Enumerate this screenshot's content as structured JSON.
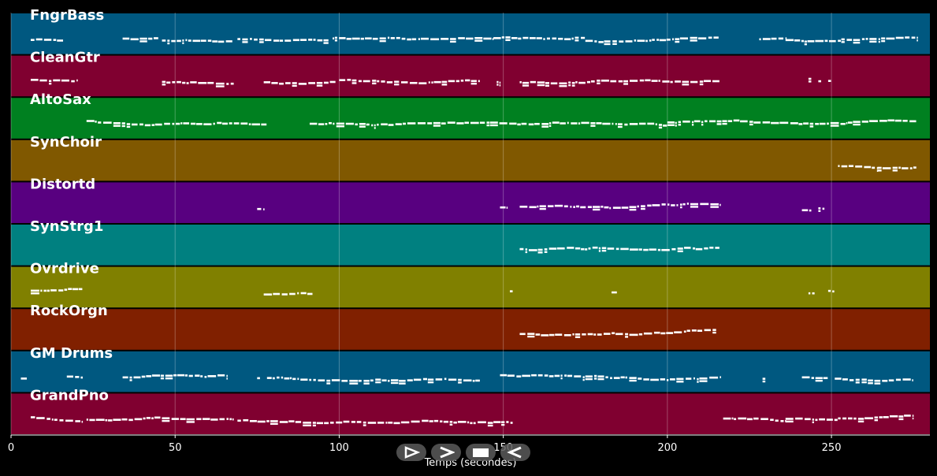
{
  "chart_data": {
    "type": "piano-roll",
    "xlabel": "Temps (secondes)",
    "xlim": [
      0,
      280
    ],
    "xticks": [
      0,
      50,
      100,
      150,
      200,
      250
    ],
    "grid": true,
    "tracks": [
      {
        "name": "FngrBass",
        "color": "#005880",
        "segments": [
          [
            6,
            16
          ],
          [
            34,
            45
          ],
          [
            46,
            68
          ],
          [
            69,
            97
          ],
          [
            98,
            147
          ],
          [
            147,
            175
          ],
          [
            175,
            200
          ],
          [
            200,
            216
          ],
          [
            228,
            236
          ],
          [
            236,
            253
          ],
          [
            253,
            276
          ]
        ]
      },
      {
        "name": "CleanGtr",
        "color": "#800030",
        "segments": [
          [
            6,
            20
          ],
          [
            46,
            68
          ],
          [
            77,
            99
          ],
          [
            100,
            143
          ],
          [
            148,
            149
          ],
          [
            155,
            216
          ],
          [
            243,
            244
          ],
          [
            246,
            247
          ],
          [
            249,
            250
          ]
        ]
      },
      {
        "name": "AltoSax",
        "color": "#008020",
        "segments": [
          [
            23,
            78
          ],
          [
            91,
            146
          ],
          [
            146,
            200
          ],
          [
            200,
            240
          ],
          [
            240,
            255
          ],
          [
            255,
            276
          ]
        ]
      },
      {
        "name": "SynChoir",
        "color": "#805800",
        "segments": [
          [
            252,
            264
          ],
          [
            264,
            276
          ]
        ]
      },
      {
        "name": "Distortd",
        "color": "#580080",
        "segments": [
          [
            75,
            77
          ],
          [
            149,
            151
          ],
          [
            155,
            216
          ],
          [
            241,
            244
          ],
          [
            246,
            248
          ]
        ]
      },
      {
        "name": "SynStrg1",
        "color": "#008080",
        "segments": [
          [
            155,
            216
          ]
        ]
      },
      {
        "name": "Ovrdrive",
        "color": "#808000",
        "segments": [
          [
            6,
            22
          ],
          [
            77,
            92
          ],
          [
            152,
            153
          ],
          [
            183,
            185
          ],
          [
            243,
            245
          ],
          [
            249,
            251
          ]
        ]
      },
      {
        "name": "RockOrgn",
        "color": "#802000",
        "segments": [
          [
            155,
            215
          ]
        ]
      },
      {
        "name": "GM Drums",
        "color": "#005880",
        "segments": [
          [
            3,
            5
          ],
          [
            17,
            22
          ],
          [
            34,
            66
          ],
          [
            75,
            76
          ],
          [
            78,
            143
          ],
          [
            149,
            216
          ],
          [
            229,
            230
          ],
          [
            241,
            249
          ],
          [
            251,
            275
          ]
        ]
      },
      {
        "name": "GrandPno",
        "color": "#800030",
        "segments": [
          [
            6,
            22
          ],
          [
            23,
            68
          ],
          [
            69,
            79
          ],
          [
            79,
            147
          ],
          [
            147,
            153
          ],
          [
            217,
            236
          ],
          [
            236,
            252
          ],
          [
            252,
            275
          ]
        ]
      }
    ]
  },
  "controls": [
    {
      "name": "play-outline-icon"
    },
    {
      "name": "chevron-right-icon"
    },
    {
      "name": "stop-icon"
    },
    {
      "name": "rewind-icon"
    }
  ]
}
